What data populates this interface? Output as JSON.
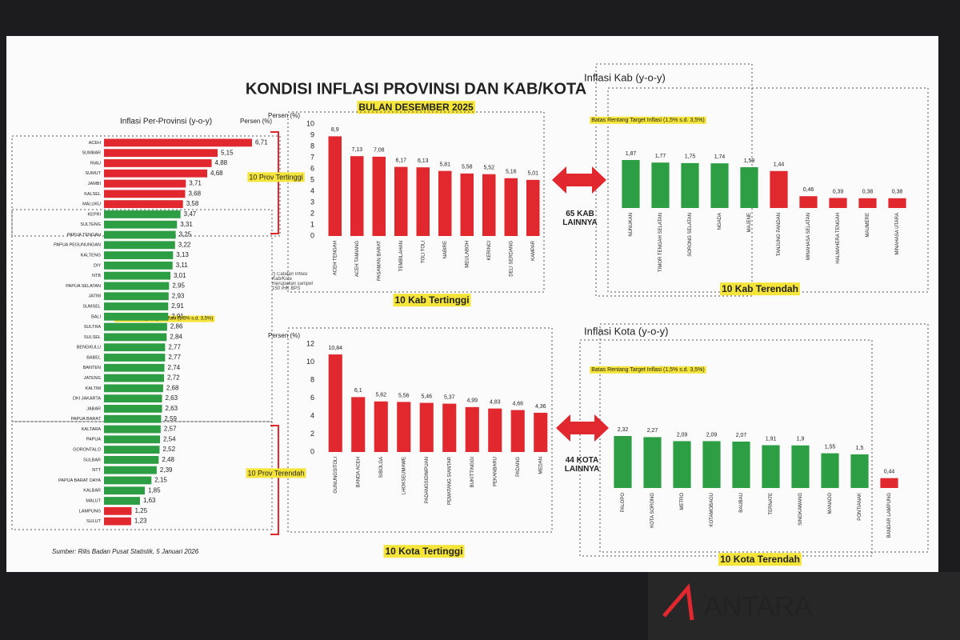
{
  "slide": {
    "title": "KONDISI INFLASI PROVINSI DAN KAB/KOTA",
    "subtitle": "BULAN DESEMBER 2025",
    "prov_high": "10 Prov Tertinggi",
    "prov_low": "10 Prov Terendah",
    "target_prov": "Batas Rentang Target Inflasi (1,5% s.d. 3,5%)",
    "target_kab": "Batas Rentang Target Inflasi (1,5% s.d. 3,5%)",
    "target_kota": "Batas Rentang Target Inflasi (1,5% s.d. 3,5%)",
    "note": "*) Catatan Inflasi Kab/Kota merupakan sampel 150 IHK BPS",
    "kab_other": "65 KAB LAINNYA",
    "kota_other": "44 KOTA LAINNYA",
    "source": "Sumber: Rilis Badan Pusat Statistik, 5 Januari 2026",
    "watermark": "ANTARA"
  },
  "chart_data": [
    {
      "type": "hbar",
      "title": "Inflasi Per-Provinsi (y-o-y)",
      "ylabel": "Persen (%)",
      "categories": [
        "ACEH",
        "SUMBAR",
        "RIAU",
        "SUMUT",
        "JAMBI",
        "KALSEL",
        "MALUKU",
        "KEPRI",
        "SULTENG",
        "PAPUA TENGAH",
        "PAPUA PEGUNUNGAN",
        "KALTENG",
        "DIY",
        "NTB",
        "PAPUA SELATAN",
        "JATIM",
        "SUMSEL",
        "BALI",
        "SULTRA",
        "SULSEL",
        "BENGKULU",
        "BABEL",
        "BANTEN",
        "JATENG",
        "KALTIM",
        "DKI JAKARTA",
        "JABAR",
        "PAPUA BARAT",
        "KALTARA",
        "PAPUA",
        "GORONTALO",
        "SULBAR",
        "NTT",
        "PAPUA BARAT DAYA",
        "KALBAR",
        "MALUT",
        "LAMPUNG",
        "SULUT"
      ],
      "values": [
        6.71,
        5.15,
        4.88,
        4.68,
        3.71,
        3.68,
        3.58,
        3.47,
        3.31,
        3.25,
        3.22,
        3.13,
        3.11,
        3.01,
        2.95,
        2.93,
        2.91,
        2.91,
        2.86,
        2.84,
        2.77,
        2.77,
        2.74,
        2.72,
        2.68,
        2.63,
        2.63,
        2.59,
        2.57,
        2.54,
        2.52,
        2.48,
        2.39,
        2.15,
        1.85,
        1.63,
        1.25,
        1.23
      ],
      "value_labels": [
        "6,71",
        "5,15",
        "4,88",
        "4,68",
        "3,71",
        "3,68",
        "3,58",
        "3,47",
        "3,31",
        "3,25",
        "3,22",
        "3,13",
        "3,11",
        "3,01",
        "2,95",
        "2,93",
        "2,91",
        "2,91",
        "2,86",
        "2,84",
        "2,77",
        "2,77",
        "2,74",
        "2,72",
        "2,68",
        "2,63",
        "2,63",
        "2,59",
        "2,57",
        "2,54",
        "2,52",
        "2,48",
        "2,39",
        "2,15",
        "1,85",
        "1,63",
        "1,25",
        "1,23"
      ],
      "colors": [
        "#e0282e",
        "#e0282e",
        "#e0282e",
        "#e0282e",
        "#e0282e",
        "#e0282e",
        "#e0282e",
        "#2e9e44",
        "#2e9e44",
        "#2e9e44",
        "#2e9e44",
        "#2e9e44",
        "#2e9e44",
        "#2e9e44",
        "#2e9e44",
        "#2e9e44",
        "#2e9e44",
        "#2e9e44",
        "#2e9e44",
        "#2e9e44",
        "#2e9e44",
        "#2e9e44",
        "#2e9e44",
        "#2e9e44",
        "#2e9e44",
        "#2e9e44",
        "#2e9e44",
        "#2e9e44",
        "#2e9e44",
        "#2e9e44",
        "#2e9e44",
        "#2e9e44",
        "#2e9e44",
        "#2e9e44",
        "#2e9e44",
        "#2e9e44",
        "#e0282e",
        "#e0282e"
      ]
    },
    {
      "type": "bar",
      "title": "Inflasi Kab (y-o-y)",
      "ylabel": "Persen (%)",
      "caption": "10 Kab Tertinggi",
      "categories": [
        "ACEH TENGAH",
        "ACEH TAMIANG",
        "PASAMAN BARAT",
        "TEMBILAHAN",
        "TOLI TOLI",
        "NABIRE",
        "MEULABOH",
        "KERINCI",
        "DELI SERDANG",
        "KAMPAR"
      ],
      "values": [
        8.9,
        7.13,
        7.08,
        6.17,
        6.13,
        5.81,
        5.58,
        5.52,
        5.16,
        5.01
      ],
      "value_labels": [
        "8,9",
        "7,13",
        "7,08",
        "6,17",
        "6,13",
        "5,81",
        "5,58",
        "5,52",
        "5,16",
        "5,01"
      ],
      "colors": [
        "#e0282e",
        "#e0282e",
        "#e0282e",
        "#e0282e",
        "#e0282e",
        "#e0282e",
        "#e0282e",
        "#e0282e",
        "#e0282e",
        "#e0282e"
      ],
      "ylim": [
        0,
        10
      ],
      "yticks": [
        0,
        1,
        2,
        3,
        4,
        5,
        6,
        7,
        8,
        9,
        10
      ]
    },
    {
      "type": "bar",
      "caption": "10 Kab Terendah",
      "categories": [
        "NUNUKAN",
        "TIMOR TENGAH SELATAN",
        "SORONG SELATAN",
        "NGADA",
        "MAJENE",
        "TANJUNG PANDAN",
        "MINAHASA SELATAN",
        "HALMAHERA TENGAH",
        "MAUMERE",
        "MINAHASA UTARA"
      ],
      "values": [
        1.87,
        1.77,
        1.75,
        1.74,
        1.59,
        1.44,
        0.46,
        0.39,
        0.38,
        0.38
      ],
      "value_labels": [
        "1,87",
        "1,77",
        "1,75",
        "1,74",
        "1,59",
        "1,44",
        "0,46",
        "0,39",
        "0,38",
        "0,38"
      ],
      "colors": [
        "#2e9e44",
        "#2e9e44",
        "#2e9e44",
        "#2e9e44",
        "#2e9e44",
        "#e0282e",
        "#e0282e",
        "#e0282e",
        "#e0282e",
        "#e0282e"
      ]
    },
    {
      "type": "bar",
      "title": "Inflasi Kota (y-o-y)",
      "ylabel": "Persen (%)",
      "caption": "10 Kota Tertinggi",
      "categories": [
        "GUNUNGSITOLI",
        "BANDA ACEH",
        "SIBOLGA",
        "LHOKSEUMAWE",
        "PADANGSIDIMPUAN",
        "PEMATANG SIANTAR",
        "BUKITTINGGI",
        "PEKANBARU",
        "PADANG",
        "MEDAN"
      ],
      "values": [
        10.84,
        6.1,
        5.62,
        5.56,
        5.46,
        5.37,
        4.99,
        4.83,
        4.66,
        4.36
      ],
      "value_labels": [
        "10,84",
        "6,1",
        "5,62",
        "5,56",
        "5,46",
        "5,37",
        "4,99",
        "4,83",
        "4,66",
        "4,36"
      ],
      "colors": [
        "#e0282e",
        "#e0282e",
        "#e0282e",
        "#e0282e",
        "#e0282e",
        "#e0282e",
        "#e0282e",
        "#e0282e",
        "#e0282e",
        "#e0282e"
      ],
      "ylim": [
        0,
        12
      ],
      "yticks": [
        0,
        2,
        4,
        6,
        8,
        10,
        12
      ]
    },
    {
      "type": "bar",
      "caption": "10 Kota Terendah",
      "categories": [
        "PALOPO",
        "KOTA SORONG",
        "METRO",
        "KOTAMOBAGU",
        "BAUBAU",
        "TERNATE",
        "SINGKAWANG",
        "MANADO",
        "PONTIANAK",
        "BANDAR LAMPUNG"
      ],
      "values": [
        2.32,
        2.27,
        2.09,
        2.09,
        2.07,
        1.91,
        1.9,
        1.55,
        1.5,
        0.44
      ],
      "value_labels": [
        "2,32",
        "2,27",
        "2,09",
        "2,09",
        "2,07",
        "1,91",
        "1,9",
        "1,55",
        "1,5",
        "0,44"
      ],
      "colors": [
        "#2e9e44",
        "#2e9e44",
        "#2e9e44",
        "#2e9e44",
        "#2e9e44",
        "#2e9e44",
        "#2e9e44",
        "#2e9e44",
        "#2e9e44",
        "#e0282e"
      ]
    }
  ]
}
